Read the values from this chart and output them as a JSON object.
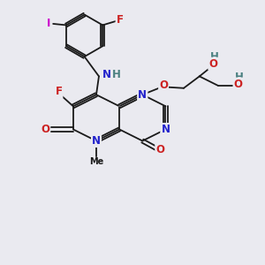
{
  "bg_color": "#eaeaf0",
  "bond_color": "#1a1a1a",
  "atom_colors": {
    "N": "#2222cc",
    "O": "#cc2222",
    "F": "#cc2222",
    "I": "#cc00cc",
    "H": "#4a8080",
    "C": "#1a1a1a"
  },
  "lw": 1.3,
  "fs": 8.5
}
